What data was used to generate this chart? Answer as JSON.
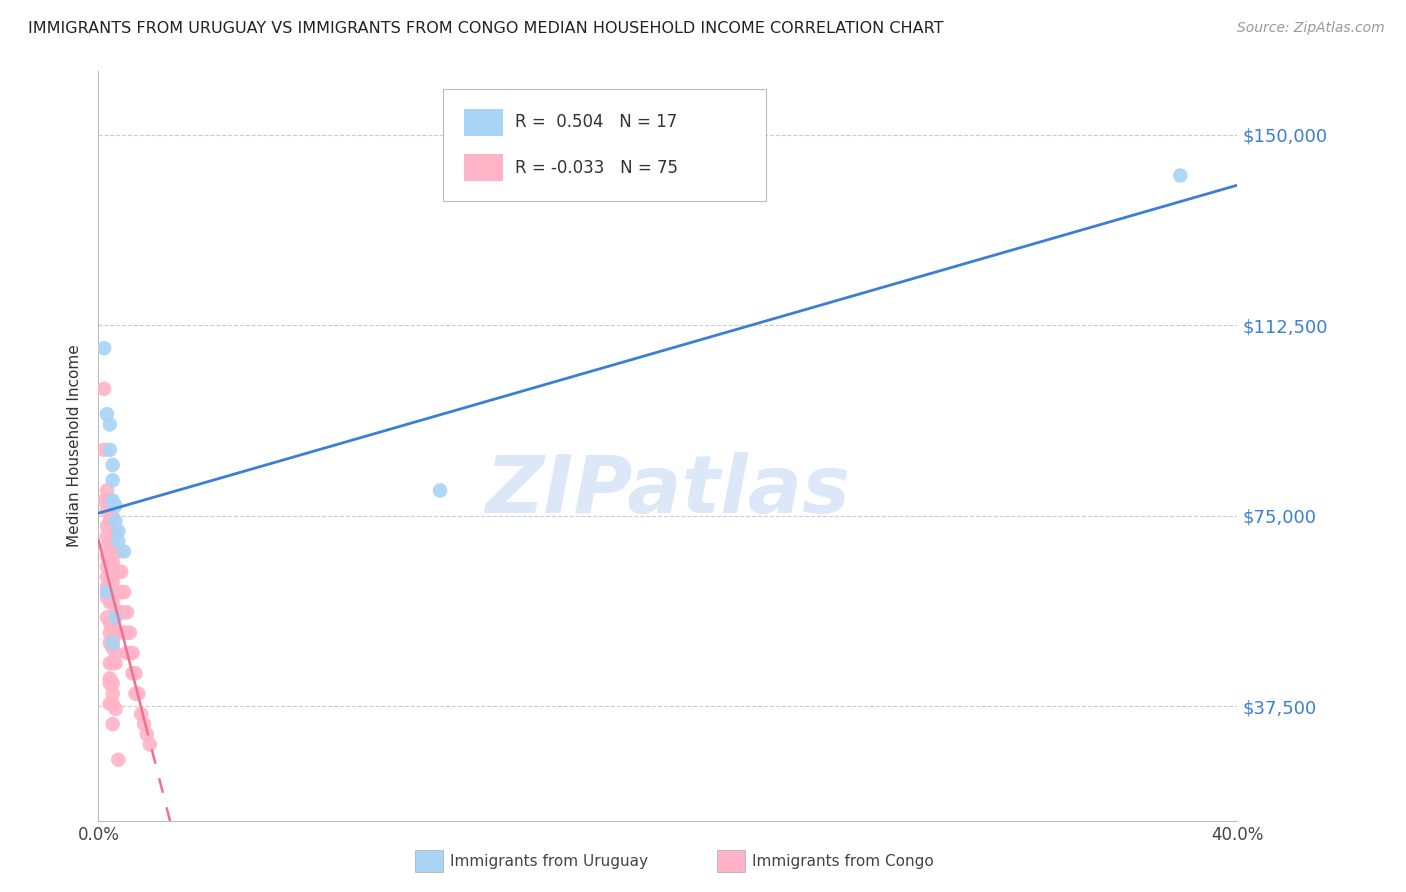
{
  "title": "IMMIGRANTS FROM URUGUAY VS IMMIGRANTS FROM CONGO MEDIAN HOUSEHOLD INCOME CORRELATION CHART",
  "source": "Source: ZipAtlas.com",
  "ylabel": "Median Household Income",
  "x_min": 0.0,
  "x_max": 0.4,
  "y_min": 15000,
  "y_max": 162500,
  "yticks": [
    37500,
    75000,
    112500,
    150000
  ],
  "ytick_labels": [
    "$37,500",
    "$75,000",
    "$112,500",
    "$150,000"
  ],
  "xticks": [
    0.0,
    0.08,
    0.16,
    0.24,
    0.32,
    0.4
  ],
  "xtick_labels": [
    "0.0%",
    "",
    "",
    "",
    "",
    "40.0%"
  ],
  "uruguay_color": "#a8d4f5",
  "congo_color": "#ffb3c6",
  "uruguay_line_color": "#3a7fd5",
  "congo_line_color": "#f07090",
  "watermark": "ZIPatlas",
  "watermark_color": "#dce8f8",
  "background_color": "#ffffff",
  "uruguay_scatter_x": [
    0.002,
    0.003,
    0.004,
    0.004,
    0.005,
    0.005,
    0.005,
    0.006,
    0.006,
    0.007,
    0.007,
    0.009,
    0.003,
    0.38,
    0.12,
    0.005,
    0.006
  ],
  "uruguay_scatter_y": [
    108000,
    95000,
    93000,
    88000,
    85000,
    82000,
    78000,
    77000,
    74000,
    72000,
    70000,
    68000,
    60000,
    142000,
    80000,
    50000,
    55000
  ],
  "congo_scatter_x": [
    0.002,
    0.002,
    0.002,
    0.003,
    0.003,
    0.003,
    0.003,
    0.003,
    0.003,
    0.003,
    0.003,
    0.003,
    0.003,
    0.004,
    0.004,
    0.004,
    0.004,
    0.004,
    0.004,
    0.004,
    0.004,
    0.004,
    0.004,
    0.004,
    0.005,
    0.005,
    0.005,
    0.005,
    0.005,
    0.005,
    0.005,
    0.005,
    0.005,
    0.005,
    0.005,
    0.006,
    0.006,
    0.006,
    0.006,
    0.006,
    0.006,
    0.006,
    0.007,
    0.007,
    0.007,
    0.007,
    0.007,
    0.008,
    0.008,
    0.008,
    0.009,
    0.009,
    0.009,
    0.01,
    0.01,
    0.01,
    0.011,
    0.011,
    0.012,
    0.012,
    0.013,
    0.013,
    0.014,
    0.015,
    0.016,
    0.017,
    0.018,
    0.003,
    0.004,
    0.005,
    0.006,
    0.004,
    0.005,
    0.006,
    0.007
  ],
  "congo_scatter_y": [
    100000,
    88000,
    78000,
    80000,
    76000,
    73000,
    71000,
    69000,
    67000,
    65000,
    63000,
    61000,
    59000,
    78000,
    74000,
    70000,
    66000,
    62000,
    58000,
    54000,
    50000,
    46000,
    42000,
    38000,
    75000,
    70000,
    66000,
    62000,
    58000,
    54000,
    50000,
    46000,
    42000,
    38000,
    34000,
    72000,
    68000,
    64000,
    60000,
    56000,
    52000,
    48000,
    68000,
    64000,
    60000,
    56000,
    52000,
    64000,
    60000,
    56000,
    60000,
    56000,
    52000,
    56000,
    52000,
    48000,
    52000,
    48000,
    48000,
    44000,
    44000,
    40000,
    40000,
    36000,
    34000,
    32000,
    30000,
    55000,
    52000,
    49000,
    46000,
    43000,
    40000,
    37000,
    27000
  ]
}
